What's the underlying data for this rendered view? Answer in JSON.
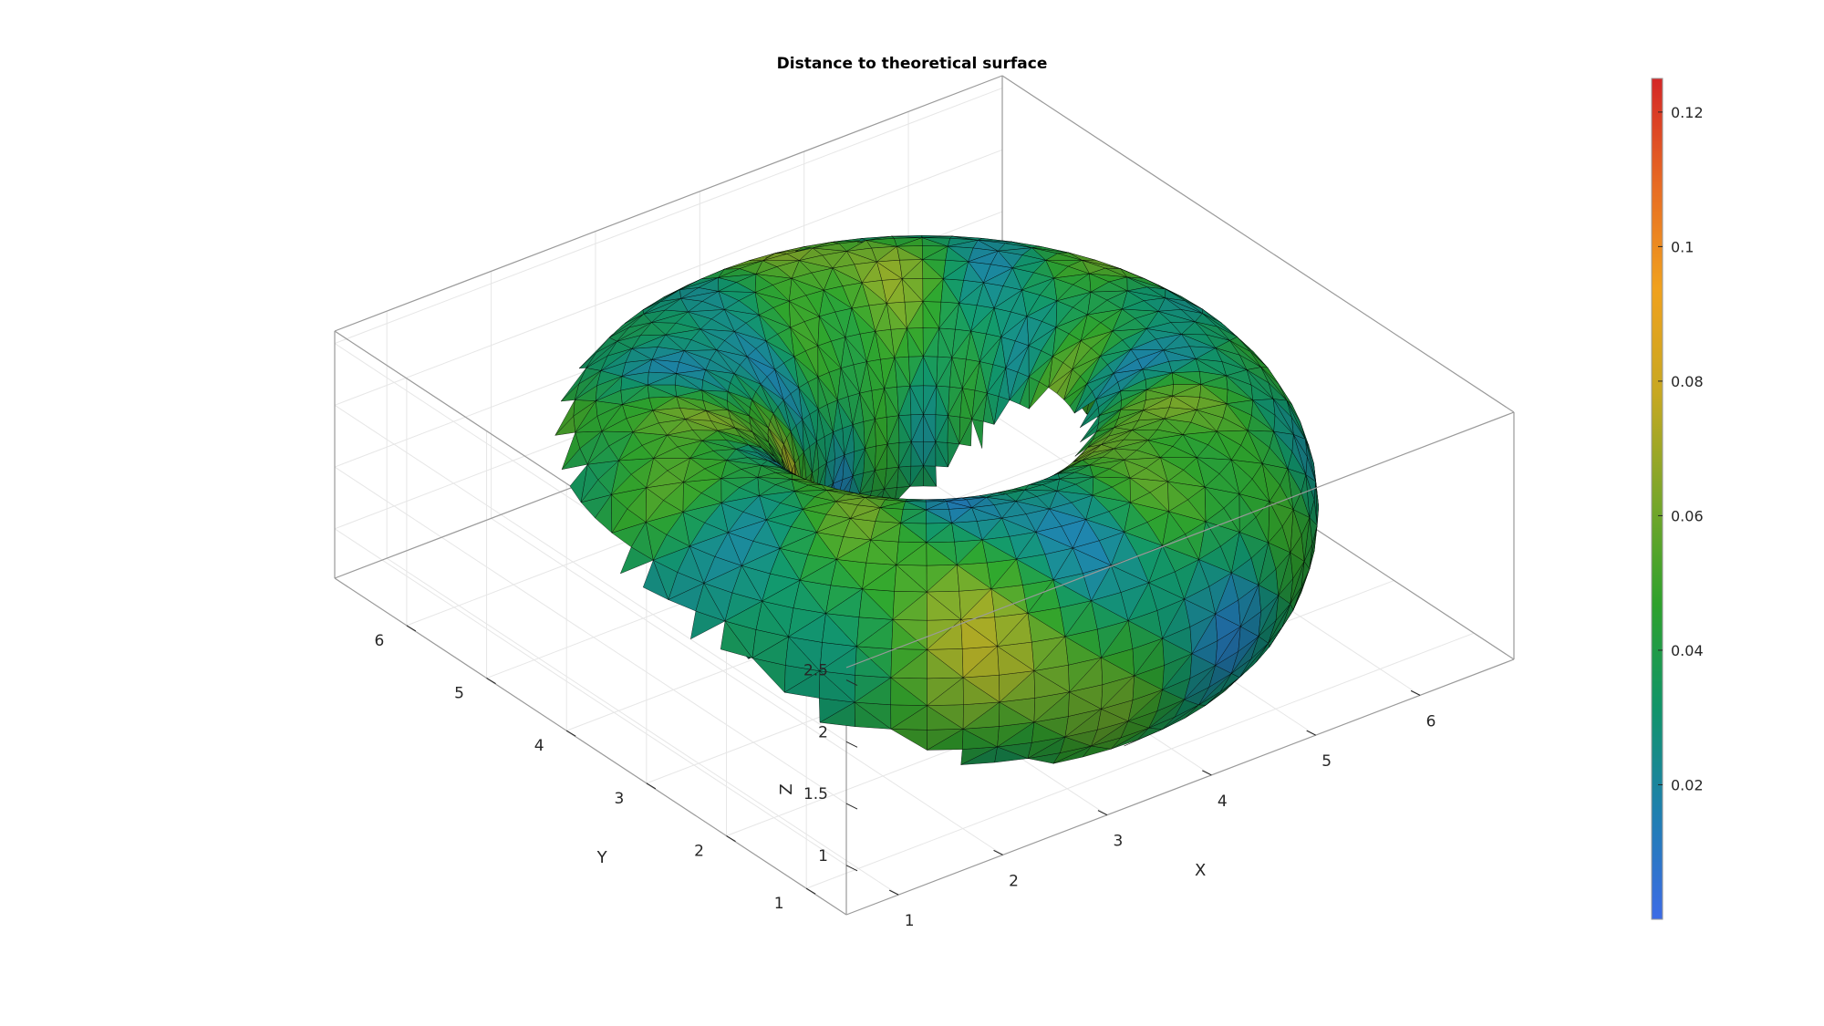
{
  "chart_data": {
    "type": "surface",
    "title": "Distance to theoretical surface",
    "xlabel": "X",
    "ylabel": "Y",
    "zlabel": "Z",
    "x_ticks": [
      "1",
      "2",
      "3",
      "4",
      "5",
      "6"
    ],
    "y_ticks": [
      "1",
      "2",
      "3",
      "4",
      "5",
      "6"
    ],
    "z_ticks": [
      "1",
      "1.5",
      "2",
      "2.5"
    ],
    "xlim": [
      0.5,
      6.9
    ],
    "ylim": [
      0.5,
      6.9
    ],
    "zlim": [
      0.6,
      2.6
    ],
    "surface": {
      "shape": "torus",
      "center": [
        3.7,
        3.7,
        1.5
      ],
      "major_radius": 2.0,
      "minor_radius": 1.0,
      "edge_color": "#000000"
    },
    "colorbar": {
      "min": 0,
      "max": 0.125,
      "ticks": [
        "0.02",
        "0.04",
        "0.06",
        "0.08",
        "0.1",
        "0.12"
      ],
      "tick_values": [
        0.02,
        0.04,
        0.06,
        0.08,
        0.1,
        0.12
      ],
      "colormap": [
        "#3d6be6",
        "#1f7fb0",
        "#11946a",
        "#2ea12c",
        "#7aa62a",
        "#c7a822",
        "#f0a11e",
        "#e76a24",
        "#d42626"
      ]
    },
    "grid": true
  }
}
